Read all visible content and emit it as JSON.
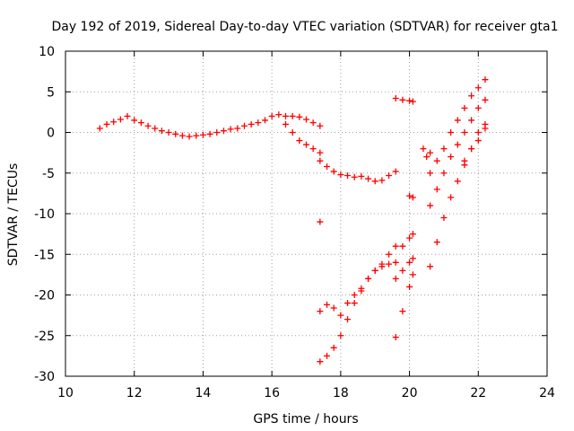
{
  "chart_data": {
    "type": "scatter",
    "title": "Day 192 of 2019, Sidereal Day-to-day VTEC variation (SDTVAR) for receiver gta1",
    "xlabel": "GPS time / hours",
    "ylabel": "SDTVAR / TECUs",
    "xlim": [
      10,
      24
    ],
    "ylim": [
      -30,
      10
    ],
    "xticks": [
      "10",
      "12",
      "14",
      "16",
      "18",
      "20",
      "22",
      "24"
    ],
    "yticks": [
      "-30",
      "-25",
      "-20",
      "-15",
      "-10",
      "-5",
      "0",
      "5",
      "10"
    ],
    "grid": true,
    "marker": "+",
    "color": "#ff0000",
    "series": [
      {
        "x": [
          11.0,
          11.2,
          11.4,
          11.6,
          11.8,
          12.0,
          12.2,
          12.4,
          12.6,
          12.8,
          13.0,
          13.2,
          13.4,
          13.6,
          13.8,
          14.0,
          14.2,
          14.4,
          14.6,
          14.8,
          15.0,
          15.2,
          15.4,
          15.6,
          15.8,
          16.0,
          16.2,
          16.4,
          16.6,
          16.8,
          17.0,
          17.2,
          17.4
        ],
        "y": [
          0.5,
          1.0,
          1.3,
          1.6,
          2.0,
          1.5,
          1.2,
          0.8,
          0.5,
          0.2,
          0.0,
          -0.2,
          -0.4,
          -0.5,
          -0.4,
          -0.3,
          -0.2,
          0.0,
          0.2,
          0.4,
          0.5,
          0.8,
          1.0,
          1.2,
          1.5,
          2.0,
          2.2,
          2.0,
          2.0,
          1.9,
          1.6,
          1.2,
          0.8
        ]
      },
      {
        "x": [
          16.4,
          16.6,
          16.8,
          17.0,
          17.2,
          17.4
        ],
        "y": [
          1.0,
          0.0,
          -1.0,
          -1.5,
          -2.0,
          -2.5
        ]
      },
      {
        "x": [
          17.4,
          17.6,
          17.8,
          18.0,
          18.2,
          18.4,
          18.6,
          18.8,
          19.0,
          19.2,
          19.4,
          19.6
        ],
        "y": [
          -3.5,
          -4.2,
          -4.8,
          -5.2,
          -5.3,
          -5.5,
          -5.4,
          -5.7,
          -6.0,
          -5.9,
          -5.3,
          -4.8
        ]
      },
      {
        "x": [
          17.4
        ],
        "y": [
          -11.0
        ]
      },
      {
        "x": [
          17.4,
          17.6,
          17.8,
          18.0,
          18.2,
          18.4,
          18.6,
          18.8,
          19.0,
          19.2,
          19.4,
          19.6
        ],
        "y": [
          -22.0,
          -21.2,
          -21.6,
          -22.5,
          -21.0,
          -20.0,
          -19.2,
          -18.0,
          -17.0,
          -16.2,
          -15.0,
          -14.0
        ]
      },
      {
        "x": [
          17.4,
          17.6,
          17.8,
          18.0,
          18.2,
          18.4,
          18.6,
          18.8,
          19.0,
          19.2,
          19.4,
          19.6
        ],
        "y": [
          -28.2,
          -27.5,
          -26.5,
          -25.0,
          -23.0,
          -21.0,
          -19.5,
          -18.0,
          -17.0,
          -16.5,
          -16.2,
          -16.0
        ]
      },
      {
        "x": [
          19.6,
          19.8,
          20.0,
          20.1
        ],
        "y": [
          4.2,
          4.0,
          3.9,
          3.8
        ]
      },
      {
        "x": [
          19.6,
          19.8,
          20.0,
          20.1
        ],
        "y": [
          -25.2,
          -22.0,
          -19.0,
          -17.5
        ]
      },
      {
        "x": [
          19.6,
          19.8,
          20.0,
          20.1
        ],
        "y": [
          -18.0,
          -17.0,
          -16.0,
          -15.5
        ]
      },
      {
        "x": [
          19.8,
          20.0,
          20.1
        ],
        "y": [
          -14.0,
          -13.0,
          -12.5
        ]
      },
      {
        "x": [
          20.0,
          20.1
        ],
        "y": [
          -7.8,
          -8.0
        ]
      },
      {
        "x": [
          20.4,
          20.5,
          20.6
        ],
        "y": [
          -2.0,
          -3.0,
          -2.5
        ]
      },
      {
        "x": [
          20.6,
          20.8,
          21.0,
          21.2,
          21.4,
          21.6,
          21.8,
          22.0,
          22.2
        ],
        "y": [
          -5.0,
          -3.5,
          -2.0,
          0.0,
          1.5,
          3.0,
          4.5,
          5.5,
          6.5
        ]
      },
      {
        "x": [
          20.6,
          20.8,
          21.0,
          21.2,
          21.4,
          21.6,
          21.8,
          22.0,
          22.2
        ],
        "y": [
          -9.0,
          -7.0,
          -5.0,
          -3.0,
          -1.5,
          0.0,
          1.5,
          3.0,
          4.0
        ]
      },
      {
        "x": [
          20.6,
          20.8,
          21.0,
          21.2,
          21.4,
          21.6,
          21.8,
          22.0,
          22.2
        ],
        "y": [
          -16.5,
          -13.5,
          -10.5,
          -8.0,
          -6.0,
          -4.0,
          -2.0,
          0.0,
          1.0
        ]
      },
      {
        "x": [
          21.6,
          21.8,
          22.0,
          22.2
        ],
        "y": [
          -3.5,
          -2.0,
          -1.0,
          0.5
        ]
      }
    ]
  }
}
